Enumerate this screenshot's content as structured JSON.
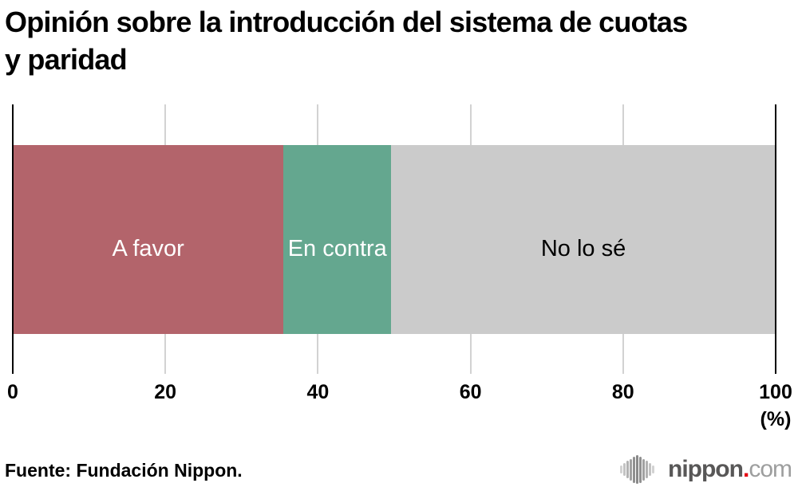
{
  "header": {
    "title_lines": [
      "Opinión sobre la introducción del sistema de cuotas",
      "y paridad"
    ]
  },
  "chart_data": {
    "type": "bar",
    "variant": "horizontal_stacked",
    "title": "Opinión sobre la introducción del sistema de cuotas y paridad",
    "unit_label": "(%)",
    "xlim": [
      0,
      100
    ],
    "grid": true,
    "ticks": [
      {
        "value": 0,
        "label": "0"
      },
      {
        "value": 20,
        "label": "20"
      },
      {
        "value": 40,
        "label": "40"
      },
      {
        "value": 60,
        "label": "60"
      },
      {
        "value": 80,
        "label": "80"
      },
      {
        "value": 100,
        "label": "100"
      }
    ],
    "segments": [
      {
        "label": "A favor",
        "value": 35.5,
        "color": "#b3646b",
        "label_color": "#ffffff"
      },
      {
        "label": "En contra",
        "value": 14.1,
        "color": "#64a78f",
        "label_color": "#ffffff"
      },
      {
        "label": "No lo sé",
        "value": 50.4,
        "color": "#cbcbcb",
        "label_color": "#000000"
      }
    ]
  },
  "footer": {
    "source": "Fuente: Fundación Nippon."
  },
  "logo": {
    "brand": "nippon",
    "dot": ".",
    "tld": "com",
    "brand_color": "#585757",
    "dot_color": "#e60012",
    "tld_color": "#9d9e9e",
    "icon_bar_heights": [
      10,
      16,
      22,
      27,
      33,
      36,
      33,
      27,
      22,
      16,
      10
    ],
    "icon_bar_colors": [
      "#d2d2d2",
      "#c3c3c3",
      "#b2b2b2",
      "#a0a0a0",
      "#909090",
      "#898989",
      "#909090",
      "#a0a0a0",
      "#b2b2b2",
      "#c3c3c3",
      "#d2d2d2"
    ]
  },
  "colors": {
    "background": "#ffffff",
    "gridline": "#d2d2d2",
    "axis_edge": "#000000",
    "text": "#000000"
  }
}
